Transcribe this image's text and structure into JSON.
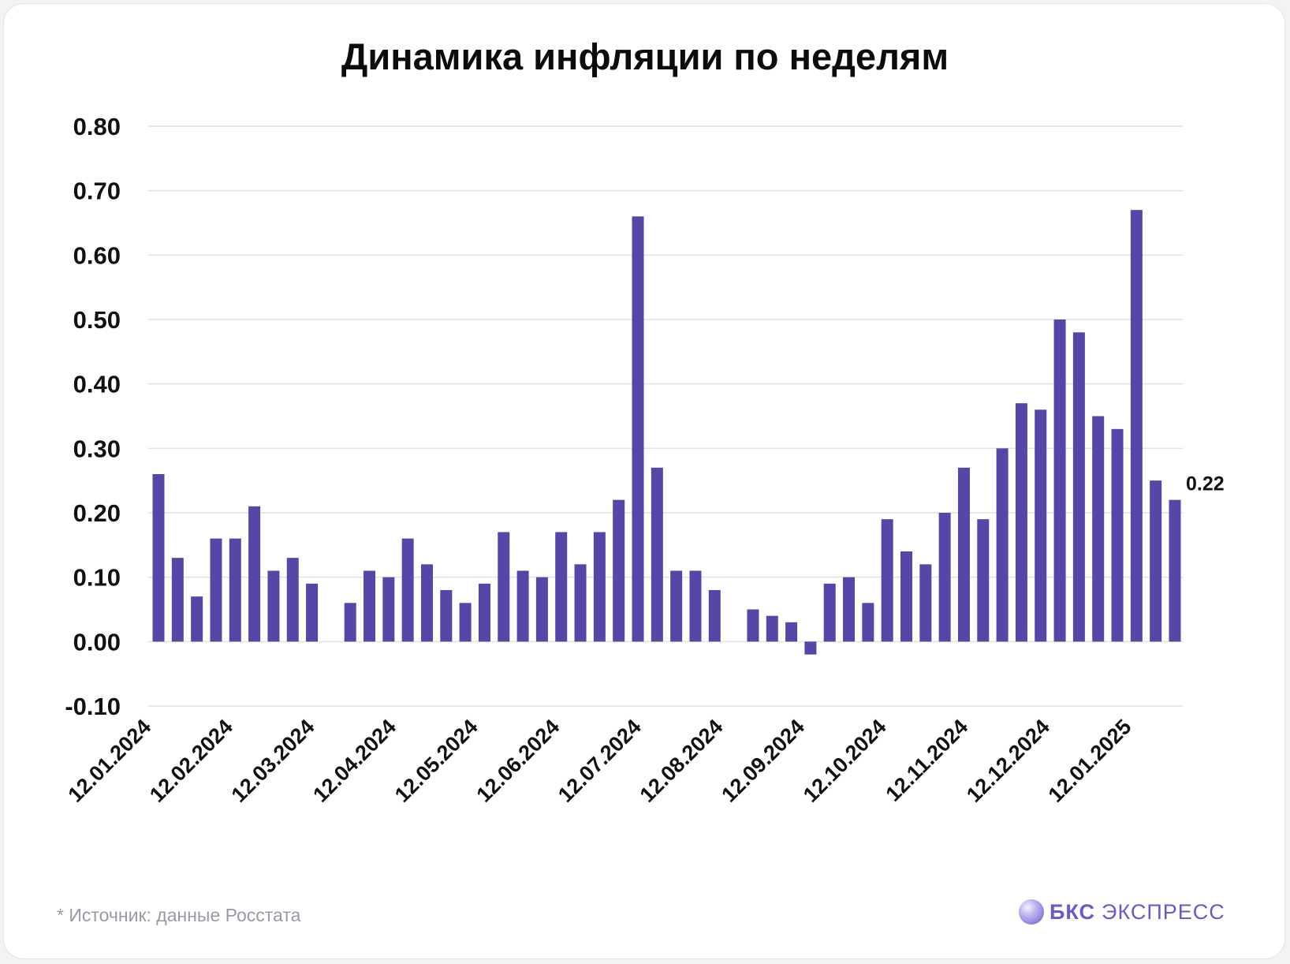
{
  "chart_data": {
    "type": "bar",
    "title": "Динамика инфляции по неделям",
    "xlabel": "",
    "ylabel": "",
    "ylim": [
      -0.1,
      0.8
    ],
    "y_ticks": [
      "0.80",
      "0.70",
      "0.60",
      "0.50",
      "0.40",
      "0.30",
      "0.20",
      "0.10",
      "0.00",
      "-0.10"
    ],
    "x_tick_labels": [
      "12.01.2024",
      "12.02.2024",
      "12.03.2024",
      "12.04.2024",
      "12.05.2024",
      "12.06.2024",
      "12.07.2024",
      "12.08.2024",
      "12.09.2024",
      "12.10.2024",
      "12.11.2024",
      "12.12.2024",
      "12.01.2025"
    ],
    "grid": true,
    "bar_color": "#5646a8",
    "values": [
      0.26,
      0.13,
      0.07,
      0.16,
      0.16,
      0.21,
      0.11,
      0.13,
      0.09,
      null,
      0.06,
      0.11,
      0.1,
      0.16,
      0.12,
      0.08,
      0.06,
      0.09,
      0.17,
      0.11,
      0.1,
      0.17,
      0.12,
      0.17,
      0.22,
      0.66,
      0.27,
      0.11,
      0.11,
      0.08,
      null,
      0.05,
      0.04,
      0.03,
      -0.02,
      0.09,
      0.1,
      0.06,
      0.19,
      0.14,
      0.12,
      0.2,
      0.27,
      0.19,
      0.3,
      0.37,
      0.36,
      0.5,
      0.48,
      0.35,
      0.33,
      0.67,
      0.25,
      0.22
    ],
    "annotation": "0.22"
  },
  "footer": {
    "source": "* Источник: данные Росстата",
    "brand_bold": "БКС",
    "brand_rest": "ЭКСПРЕСС"
  },
  "colors": {
    "bar": "#5646a8",
    "grid": "#e2e2e2",
    "brand": "#6a59cc"
  }
}
